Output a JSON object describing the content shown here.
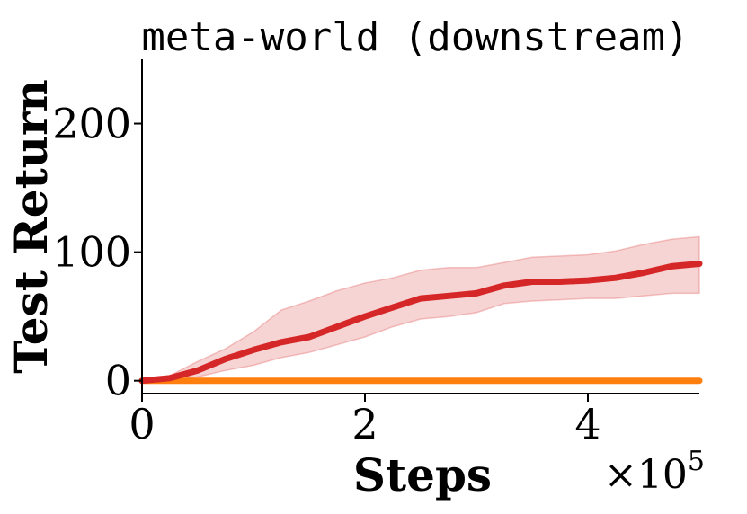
{
  "chart_data": {
    "type": "line",
    "title": "meta-world (downstream)",
    "xlabel": "Steps",
    "ylabel": "Test Return",
    "x_scale_label": "×10",
    "x_scale_exponent": "5",
    "xlim": [
      0,
      5
    ],
    "ylim": [
      -10,
      250
    ],
    "xticks": [
      0,
      2,
      4
    ],
    "xtick_labels": [
      "0",
      "2",
      "4"
    ],
    "yticks": [
      0,
      100,
      200
    ],
    "ytick_labels": [
      "0",
      "100",
      "200"
    ],
    "grid": false,
    "legend": "none",
    "series": [
      {
        "color": "#d62728",
        "band_color": "#d62728",
        "x": [
          0,
          0.25,
          0.5,
          0.75,
          1.0,
          1.25,
          1.5,
          1.75,
          2.0,
          2.25,
          2.5,
          2.75,
          3.0,
          3.25,
          3.5,
          3.75,
          4.0,
          4.25,
          4.5,
          4.75,
          5.0
        ],
        "mean": [
          0,
          2,
          8,
          17,
          24,
          30,
          34,
          42,
          50,
          57,
          64,
          66,
          68,
          74,
          77,
          77,
          78,
          80,
          84,
          89,
          91
        ],
        "lower": [
          0,
          0,
          3,
          8,
          12,
          18,
          22,
          28,
          34,
          42,
          48,
          50,
          53,
          60,
          62,
          63,
          64,
          64,
          66,
          68,
          68
        ],
        "upper": [
          0,
          4,
          15,
          25,
          38,
          55,
          62,
          70,
          76,
          80,
          86,
          88,
          88,
          92,
          96,
          97,
          98,
          101,
          106,
          110,
          112
        ]
      },
      {
        "color": "#ff7f0e",
        "x": [
          0,
          0.5,
          1.0,
          1.5,
          2.0,
          2.5,
          3.0,
          3.5,
          4.0,
          4.5,
          5.0
        ],
        "mean": [
          0,
          0,
          0,
          0,
          0,
          0,
          0,
          0,
          0,
          0,
          0
        ]
      }
    ]
  }
}
